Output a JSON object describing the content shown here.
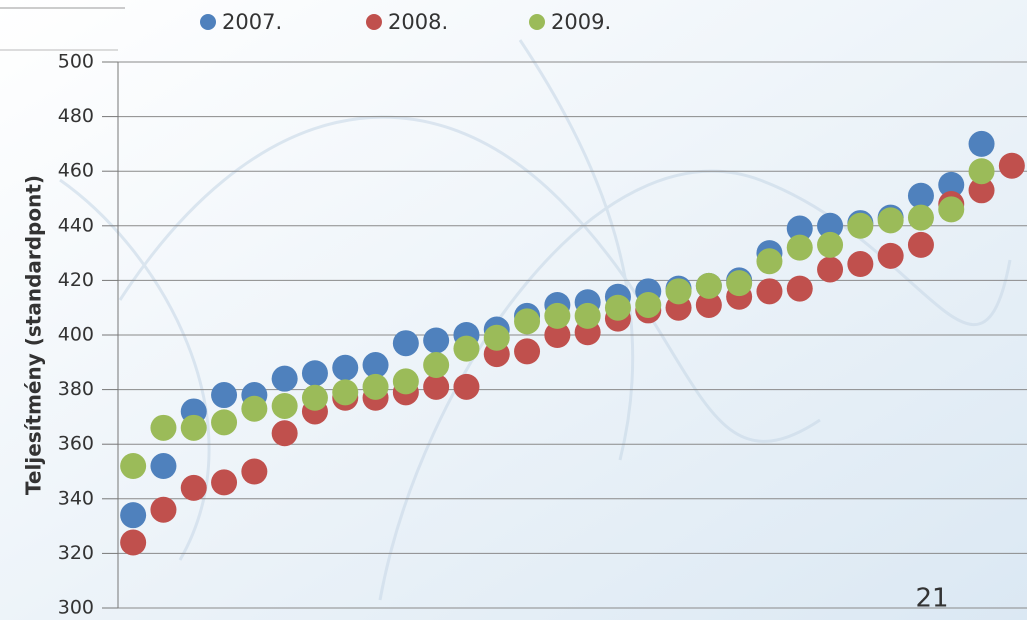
{
  "chart_data": {
    "type": "scatter",
    "y_label": "Teljesítmény (standardpont)",
    "annotation": "21",
    "categories": [
      null,
      null,
      null,
      null,
      null,
      null,
      null,
      null,
      null,
      null,
      null,
      null,
      null,
      null,
      null,
      null,
      null,
      null,
      null,
      null,
      null,
      null,
      null,
      null,
      null,
      null,
      null,
      null,
      null,
      null
    ],
    "series": [
      {
        "name": "2007.",
        "color": "#4f81bd",
        "values": [
          334,
          352,
          372,
          378,
          378,
          384,
          386,
          388,
          389,
          397,
          398,
          400,
          402,
          407,
          411,
          412,
          414,
          416,
          417,
          418,
          420,
          430,
          439,
          440,
          441,
          443,
          451,
          455,
          470,
          null
        ]
      },
      {
        "name": "2008.",
        "color": "#c0504d",
        "values": [
          324,
          336,
          344,
          346,
          350,
          364,
          372,
          377,
          377,
          379,
          381,
          381,
          393,
          394,
          400,
          401,
          406,
          409,
          410,
          411,
          414,
          416,
          417,
          424,
          426,
          429,
          433,
          448,
          453,
          462
        ]
      },
      {
        "name": "2009.",
        "color": "#9bbb59",
        "values": [
          352,
          366,
          366,
          368,
          373,
          374,
          377,
          379,
          381,
          383,
          389,
          395,
          399,
          405,
          407,
          407,
          410,
          411,
          416,
          418,
          419,
          427,
          432,
          433,
          440,
          442,
          443,
          446,
          460,
          null
        ]
      }
    ],
    "ylim": [
      300,
      500
    ],
    "yticks": [
      300,
      320,
      340,
      360,
      380,
      400,
      420,
      440,
      460,
      480,
      500
    ],
    "grid": true
  }
}
